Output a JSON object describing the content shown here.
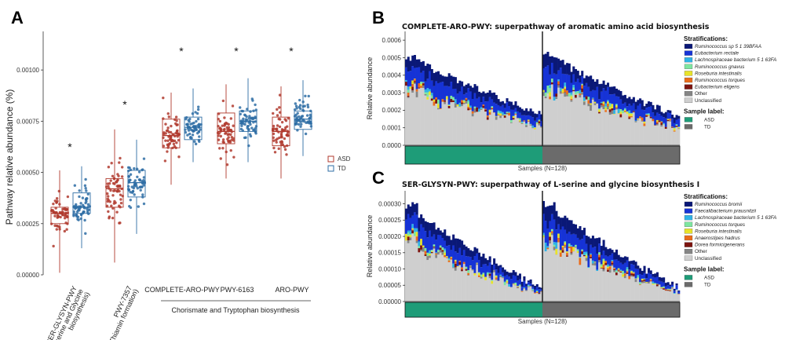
{
  "chart_data": [
    {
      "panel": "A",
      "type": "box",
      "ylabel": "Pathway  relative abundance (%)",
      "yticks": [
        "0.00000",
        "0.00025",
        "0.00050",
        "0.00075",
        "0.00100"
      ],
      "ylim": [
        0,
        0.00115
      ],
      "categories": [
        {
          "lines": [
            "SER-GLYSYN-PWY",
            "(L-serine and Glycine",
            "biosynthesis)"
          ],
          "rotated": true
        },
        {
          "lines": [
            "PWY-7357",
            "(Thiamin formation)"
          ],
          "rotated": true
        },
        {
          "lines": [
            "COMPLETE-ARO-PWY"
          ],
          "rotated": false
        },
        {
          "lines": [
            "PWY-6163"
          ],
          "rotated": false
        },
        {
          "lines": [
            "ARO-PWY"
          ],
          "rotated": false
        }
      ],
      "significance": [
        "*",
        "*",
        "*",
        "*",
        "*"
      ],
      "group_label": "Chorismate and Tryptophan biosynthesis",
      "legend": [
        {
          "name": "ASD",
          "color": "#b03a2e"
        },
        {
          "name": "TD",
          "color": "#2e6da4"
        }
      ],
      "series": [
        {
          "name": "ASD",
          "color": "#b03a2e",
          "boxes": [
            {
              "q1": 0.00025,
              "median": 0.0003,
              "q3": 0.00033,
              "min": 1e-05,
              "max": 0.00051
            },
            {
              "q1": 0.00033,
              "median": 0.00042,
              "q3": 0.00047,
              "min": 6e-05,
              "max": 0.00071
            },
            {
              "q1": 0.00062,
              "median": 0.00068,
              "q3": 0.00076,
              "min": 0.00044,
              "max": 0.00089
            },
            {
              "q1": 0.00064,
              "median": 0.0007,
              "q3": 0.00079,
              "min": 0.00047,
              "max": 0.00093
            },
            {
              "q1": 0.00063,
              "median": 0.0007,
              "q3": 0.00077,
              "min": 0.00047,
              "max": 0.00092
            }
          ]
        },
        {
          "name": "TD",
          "color": "#2e6da4",
          "boxes": [
            {
              "q1": 0.0003,
              "median": 0.00033,
              "q3": 0.0004,
              "min": 0.00013,
              "max": 0.00053
            },
            {
              "q1": 0.00038,
              "median": 0.00045,
              "q3": 0.00051,
              "min": 0.0002,
              "max": 0.00066
            },
            {
              "q1": 0.00066,
              "median": 0.00072,
              "q3": 0.00077,
              "min": 0.00055,
              "max": 0.00091
            },
            {
              "q1": 0.0007,
              "median": 0.00075,
              "q3": 0.0008,
              "min": 0.00055,
              "max": 0.00096
            },
            {
              "q1": 0.00071,
              "median": 0.00076,
              "q3": 0.0008,
              "min": 0.00058,
              "max": 0.00095
            }
          ]
        }
      ]
    },
    {
      "panel": "B",
      "type": "bar",
      "title": "COMPLETE-ARO-PWY: superpathway of aromatic amino acid biosynthesis",
      "ylabel": "Relative abundance",
      "xlabel": "Samples (N=128)",
      "yticks": [
        "0.0000",
        "0.0001",
        "0.0002",
        "0.0003",
        "0.0004",
        "0.0005",
        "0.0006"
      ],
      "ymax": 0.00065,
      "n_per_group": 64,
      "group_max": [
        0.00052,
        0.00054
      ],
      "group_min": [
        0.00018,
        0.00016
      ],
      "strat_title": "Stratifications:",
      "strats": [
        {
          "name": "Ruminococcus sp 5 1 39BFAA",
          "color": "#0a1877"
        },
        {
          "name": "Eubacterium rectale",
          "color": "#1633d6"
        },
        {
          "name": "Lachnospiraceae bacterium 5 1 63FA",
          "color": "#2fb3e6"
        },
        {
          "name": "Ruminococcus gnavus",
          "color": "#7ee6a0"
        },
        {
          "name": "Roseburia intestinalis",
          "color": "#e8e32a"
        },
        {
          "name": "Ruminococcus torques",
          "color": "#ea6b1a"
        },
        {
          "name": "Eubacterium eligens",
          "color": "#7d140f"
        },
        {
          "name": "Other",
          "color": "#858585",
          "plain": true
        },
        {
          "name": "Unclassified",
          "color": "#cfcfcf",
          "plain": true
        }
      ],
      "sample_title": "Sample label:",
      "samples": [
        {
          "name": "ASD",
          "color": "#1e9c78"
        },
        {
          "name": "TD",
          "color": "#6b6b6b"
        }
      ]
    },
    {
      "panel": "C",
      "type": "bar",
      "title": "SER-GLYSYN-PWY: superpathway of L-serine and glycine biosynthesis I",
      "ylabel": "Relative abundance",
      "xlabel": "Samples (N=128)",
      "yticks": [
        "0.00000",
        "0.00005",
        "0.00010",
        "0.00015",
        "0.00020",
        "0.00025",
        "0.00030"
      ],
      "ymax": 0.00034,
      "n_per_group": 64,
      "group_max": [
        0.000305,
        0.000315
      ],
      "group_min": [
        4e-05,
        4e-05
      ],
      "strat_title": "Stratifications:",
      "strats": [
        {
          "name": "Ruminococcus bromii",
          "color": "#0a1877"
        },
        {
          "name": "Faecalibacterium prausnitzii",
          "color": "#1633d6"
        },
        {
          "name": "Lachnospiraceae bacterium 5 1 63FA",
          "color": "#2fb3e6"
        },
        {
          "name": "Ruminococcus torques",
          "color": "#7ee6a0"
        },
        {
          "name": "Roseburia intestinalis",
          "color": "#e8e32a"
        },
        {
          "name": "Anaerostipes hadrus",
          "color": "#ea6b1a"
        },
        {
          "name": "Dorea formicigenerans",
          "color": "#7d140f"
        },
        {
          "name": "Other",
          "color": "#858585",
          "plain": true
        },
        {
          "name": "Unclassified",
          "color": "#cfcfcf",
          "plain": true
        }
      ],
      "sample_title": "Sample label:",
      "samples": [
        {
          "name": "ASD",
          "color": "#1e9c78"
        },
        {
          "name": "TD",
          "color": "#6b6b6b"
        }
      ]
    }
  ]
}
